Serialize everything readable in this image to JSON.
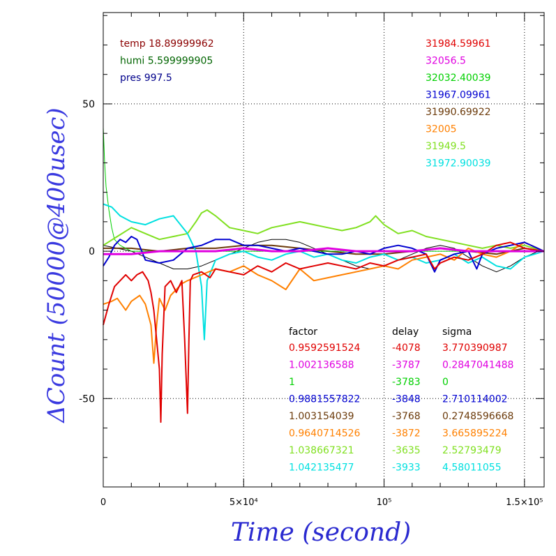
{
  "chart_data": {
    "type": "line",
    "xlabel": "Time (second)",
    "ylabel": "ΔCount (50000@400usec)",
    "xlim": [
      0,
      157000
    ],
    "ylim": [
      -80,
      81
    ],
    "x_ticks": [
      {
        "value": 0,
        "label": "0"
      },
      {
        "value": 50000,
        "label": "5×10⁴"
      },
      {
        "value": 100000,
        "label": "10⁵"
      },
      {
        "value": 150000,
        "label": "1.5×10⁵"
      }
    ],
    "y_ticks": [
      {
        "value": 50,
        "label": "50"
      },
      {
        "value": 0,
        "label": "0"
      },
      {
        "value": -50,
        "label": "-50"
      }
    ],
    "env": [
      {
        "label": "temp",
        "value": "18.89999962",
        "color": "#8b0000"
      },
      {
        "label": "humi",
        "value": "5.599999905",
        "color": "#006400"
      },
      {
        "label": "pres",
        "value": "997.5",
        "color": "#00008b"
      }
    ],
    "means": [
      {
        "value": "31984.59961",
        "color": "#e00000"
      },
      {
        "value": "32056.5",
        "color": "#e000e0"
      },
      {
        "value": "32032.40039",
        "color": "#00d000"
      },
      {
        "value": "31967.09961",
        "color": "#0000d0"
      },
      {
        "value": "31990.69922",
        "color": "#6b3a0a"
      },
      {
        "value": "32005",
        "color": "#ff8000"
      },
      {
        "value": "31949.5",
        "color": "#80e020"
      },
      {
        "value": "31972.90039",
        "color": "#00e0e0"
      }
    ],
    "table_headers": [
      "factor",
      "delay",
      "sigma"
    ],
    "table_rows": [
      {
        "factor": "0.9592591524",
        "delay": "-4078",
        "sigma": "3.770390987",
        "color": "#e00000"
      },
      {
        "factor": "1.002136588",
        "delay": "-3787",
        "sigma": "0.2847041488",
        "color": "#e000e0"
      },
      {
        "factor": "1",
        "delay": "-3783",
        "sigma": "0",
        "color": "#00d000"
      },
      {
        "factor": "0.9881557822",
        "delay": "-3848",
        "sigma": "2.710114002",
        "color": "#0000d0"
      },
      {
        "factor": "1.003154039",
        "delay": "-3768",
        "sigma": "0.2748596668",
        "color": "#6b3a0a"
      },
      {
        "factor": "0.9640714526",
        "delay": "-3872",
        "sigma": "3.665895224",
        "color": "#ff8000"
      },
      {
        "factor": "1.038667321",
        "delay": "-3635",
        "sigma": "2.52793479",
        "color": "#80e020"
      },
      {
        "factor": "1.042135477",
        "delay": "-3933",
        "sigma": "4.58011055",
        "color": "#00e0e0"
      }
    ],
    "series": [
      {
        "color": "#000000",
        "width": 1,
        "x": [
          0,
          5000,
          10000,
          15000,
          20000,
          25000,
          30000,
          35000,
          40000,
          45000,
          50000,
          55000,
          60000,
          65000,
          70000,
          75000,
          80000,
          85000,
          90000,
          95000,
          100000,
          105000,
          110000,
          115000,
          120000,
          125000,
          130000,
          135000,
          140000,
          145000,
          150000,
          155000,
          157000
        ],
        "values": [
          2,
          1,
          0,
          -2,
          -4,
          -6,
          -6,
          -5,
          -3,
          -1,
          1,
          3,
          4,
          4,
          3,
          1,
          -1,
          -3,
          -5,
          -6,
          -5,
          -3,
          -1,
          1,
          2,
          1,
          -2,
          -5,
          -7,
          -5,
          -2,
          0,
          0
        ]
      },
      {
        "color": "#6b3a0a",
        "width": 2,
        "x": [
          0,
          10000,
          20000,
          30000,
          40000,
          50000,
          60000,
          70000,
          80000,
          90000,
          100000,
          110000,
          120000,
          130000,
          140000,
          150000,
          157000
        ],
        "values": [
          1,
          1,
          0,
          1,
          1,
          2,
          2,
          1,
          0,
          -1,
          -1,
          0,
          1,
          0,
          -1,
          1,
          0
        ]
      },
      {
        "color": "#00d000",
        "width": 1,
        "x": [
          0,
          500,
          1000,
          2000,
          3000,
          4000,
          6000,
          8000,
          10000,
          12000,
          15000,
          20000,
          25000,
          30000,
          40000,
          50000,
          60000,
          70000,
          80000,
          90000,
          100000,
          110000,
          120000,
          130000,
          140000,
          150000,
          157000
        ],
        "values": [
          42,
          30,
          22,
          14,
          8,
          4,
          2,
          1,
          0,
          0,
          0,
          0,
          0,
          0,
          0,
          0,
          0,
          0,
          0,
          0,
          0,
          0,
          0,
          0,
          0,
          0,
          0
        ]
      },
      {
        "color": "#80e020",
        "width": 2,
        "x": [
          0,
          5000,
          10000,
          15000,
          20000,
          25000,
          30000,
          33000,
          35000,
          37000,
          40000,
          45000,
          50000,
          55000,
          60000,
          65000,
          70000,
          75000,
          80000,
          85000,
          90000,
          95000,
          97000,
          100000,
          105000,
          110000,
          115000,
          120000,
          125000,
          130000,
          135000,
          140000,
          145000,
          150000,
          157000
        ],
        "values": [
          2,
          5,
          8,
          6,
          4,
          5,
          6,
          10,
          13,
          14,
          12,
          8,
          7,
          6,
          8,
          9,
          10,
          9,
          8,
          7,
          8,
          10,
          12,
          9,
          6,
          7,
          5,
          4,
          3,
          2,
          1,
          2,
          1,
          2,
          0
        ]
      },
      {
        "color": "#00e0e0",
        "width": 2,
        "x": [
          0,
          3000,
          6000,
          10000,
          15000,
          20000,
          25000,
          30000,
          33000,
          35000,
          36000,
          37000,
          40000,
          45000,
          50000,
          55000,
          60000,
          65000,
          70000,
          75000,
          80000,
          85000,
          90000,
          95000,
          100000,
          105000,
          110000,
          115000,
          120000,
          125000,
          130000,
          135000,
          140000,
          145000,
          150000,
          157000
        ],
        "values": [
          16,
          15,
          12,
          10,
          9,
          11,
          12,
          6,
          0,
          -12,
          -30,
          -10,
          -3,
          -1,
          0,
          -2,
          -3,
          -1,
          0,
          -2,
          -1,
          -3,
          -4,
          -2,
          -1,
          -3,
          -2,
          -4,
          -3,
          -1,
          -4,
          -2,
          -5,
          -6,
          -2,
          0
        ]
      },
      {
        "color": "#ff8000",
        "width": 2,
        "x": [
          0,
          3000,
          5000,
          8000,
          10000,
          13000,
          15000,
          17000,
          18000,
          19000,
          20000,
          22000,
          24000,
          26000,
          28000,
          30000,
          35000,
          40000,
          45000,
          50000,
          55000,
          60000,
          65000,
          70000,
          75000,
          80000,
          85000,
          90000,
          95000,
          100000,
          105000,
          110000,
          115000,
          120000,
          125000,
          130000,
          135000,
          140000,
          145000,
          150000,
          157000
        ],
        "values": [
          -18,
          -17,
          -16,
          -20,
          -17,
          -15,
          -18,
          -25,
          -38,
          -25,
          -16,
          -20,
          -15,
          -13,
          -11,
          -10,
          -8,
          -6,
          -7,
          -5,
          -8,
          -10,
          -13,
          -6,
          -10,
          -9,
          -8,
          -7,
          -6,
          -5,
          -6,
          -3,
          -2,
          -1,
          -3,
          1,
          -1,
          -2,
          0,
          3,
          0
        ]
      },
      {
        "color": "#0000d0",
        "width": 2,
        "x": [
          0,
          2000,
          4000,
          6000,
          8000,
          10000,
          12000,
          15000,
          20000,
          25000,
          30000,
          35000,
          40000,
          45000,
          50000,
          55000,
          60000,
          65000,
          70000,
          75000,
          80000,
          85000,
          90000,
          95000,
          100000,
          105000,
          110000,
          115000,
          118000,
          120000,
          125000,
          130000,
          133000,
          135000,
          140000,
          145000,
          150000,
          157000
        ],
        "values": [
          -5,
          -2,
          2,
          4,
          3,
          5,
          4,
          -3,
          -4,
          -3,
          1,
          2,
          4,
          4,
          2,
          2,
          1,
          0,
          1,
          0,
          -1,
          -1,
          0,
          -1,
          1,
          2,
          1,
          -1,
          -7,
          -3,
          -1,
          0,
          -6,
          -1,
          1,
          2,
          3,
          0
        ]
      },
      {
        "color": "#e00000",
        "width": 2,
        "x": [
          0,
          2000,
          4000,
          6000,
          8000,
          10000,
          12000,
          14000,
          16000,
          17000,
          18000,
          19000,
          20000,
          20500,
          21000,
          22000,
          24000,
          26000,
          28000,
          29000,
          30000,
          30500,
          31000,
          32000,
          35000,
          38000,
          40000,
          45000,
          50000,
          55000,
          60000,
          65000,
          70000,
          75000,
          80000,
          85000,
          90000,
          95000,
          100000,
          105000,
          110000,
          115000,
          118000,
          120000,
          125000,
          130000,
          135000,
          140000,
          145000,
          150000,
          157000
        ],
        "values": [
          -25,
          -18,
          -12,
          -10,
          -8,
          -10,
          -8,
          -7,
          -10,
          -14,
          -20,
          -30,
          -40,
          -58,
          -35,
          -12,
          -10,
          -14,
          -10,
          -30,
          -55,
          -30,
          -10,
          -8,
          -7,
          -9,
          -6,
          -7,
          -8,
          -5,
          -7,
          -4,
          -6,
          -5,
          -4,
          -5,
          -6,
          -4,
          -5,
          -3,
          -2,
          -1,
          -6,
          -4,
          -2,
          -3,
          -1,
          2,
          3,
          1,
          0
        ]
      },
      {
        "color": "#e000e0",
        "width": 3,
        "x": [
          0,
          10000,
          20000,
          30000,
          40000,
          50000,
          60000,
          70000,
          80000,
          90000,
          100000,
          110000,
          120000,
          130000,
          140000,
          150000,
          157000
        ],
        "values": [
          -1,
          -1,
          0,
          0,
          0,
          1,
          0,
          0,
          1,
          0,
          0,
          0,
          1,
          0,
          0,
          0,
          0
        ]
      }
    ]
  }
}
